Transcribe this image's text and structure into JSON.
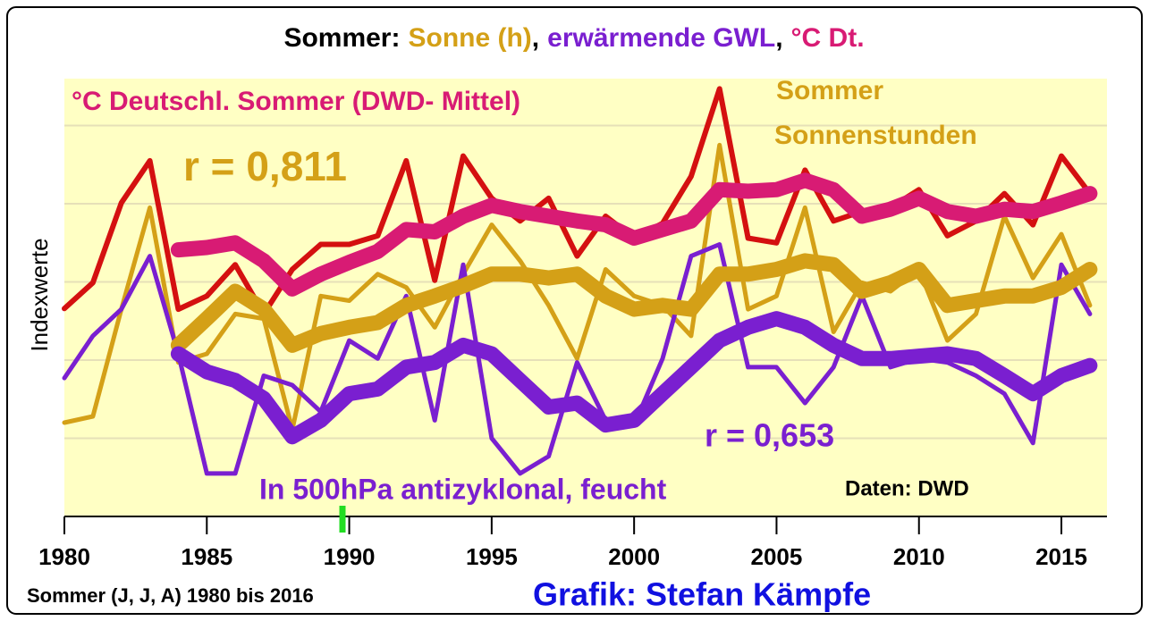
{
  "chart_data": {
    "type": "line",
    "title_parts": [
      "Sommer:",
      "Sonne (h)",
      ",",
      "erwärmende GWL",
      ",",
      "°C Dt."
    ],
    "title_colors": [
      "#000000",
      "#d4a017",
      "#000000",
      "#7a1fd0",
      "#000000",
      "#d81b74"
    ],
    "y_label": "Indexwerte",
    "x_caption": "Sommer (J, J, A) 1980 bis 2016",
    "credit": "Grafik: Stefan Kämpfe",
    "annotations": [
      {
        "text": "°C Deutschl. Sommer (DWD- Mittel)",
        "color": "#d81b74"
      },
      {
        "text": "Sommer",
        "color": "#d4a017"
      },
      {
        "text": "Sonnenstunden",
        "color": "#d4a017"
      },
      {
        "text": "r = 0,811",
        "color": "#d4a017"
      },
      {
        "text": "r = 0,653",
        "color": "#7a1fd0"
      },
      {
        "text": "In 500hPa antizyklonal, feucht",
        "color": "#7a1fd0"
      },
      {
        "text": "Daten: DWD",
        "color": "#000000"
      }
    ],
    "x": [
      1980,
      1981,
      1982,
      1983,
      1984,
      1985,
      1986,
      1987,
      1988,
      1989,
      1990,
      1991,
      1992,
      1993,
      1994,
      1995,
      1996,
      1997,
      1998,
      1999,
      2000,
      2001,
      2002,
      2003,
      2004,
      2005,
      2006,
      2007,
      2008,
      2009,
      2010,
      2011,
      2012,
      2013,
      2014,
      2015,
      2016
    ],
    "xlim": [
      1980,
      2016.6
    ],
    "xticks": [
      1980,
      1985,
      1990,
      1995,
      2000,
      2005,
      2010,
      2015
    ],
    "ylim": [
      0,
      5.6
    ],
    "ygrid": [
      1,
      2,
      3,
      4,
      5
    ],
    "grid": true,
    "series": [
      {
        "color": "#d4a017",
        "width": 5,
        "values": [
          1.2,
          1.28,
          2.65,
          3.95,
          1.97,
          2.08,
          2.59,
          2.53,
          1.11,
          2.82,
          2.76,
          3.1,
          2.93,
          2.42,
          3.1,
          3.73,
          3.27,
          2.7,
          2.02,
          3.16,
          2.82,
          2.7,
          2.31,
          4.75,
          2.65,
          2.82,
          3.95,
          2.36,
          2.99,
          2.88,
          3.16,
          2.25,
          2.59,
          3.84,
          3.05,
          3.61,
          2.7
        ]
      },
      {
        "color": "#7a1fd0",
        "width": 5,
        "values": [
          1.77,
          2.31,
          2.65,
          3.33,
          2.08,
          0.55,
          0.55,
          1.8,
          1.68,
          1.34,
          2.25,
          2.02,
          2.82,
          1.23,
          3.22,
          1.0,
          0.55,
          0.77,
          1.97,
          1.23,
          1.17,
          2.02,
          3.33,
          3.48,
          1.91,
          1.91,
          1.45,
          1.91,
          2.82,
          1.91,
          2.02,
          1.97,
          1.8,
          1.57,
          0.94,
          3.22,
          2.59
        ]
      },
      {
        "color": "#d41010",
        "width": 6,
        "values": [
          2.66,
          2.99,
          4.01,
          4.55,
          2.65,
          2.82,
          3.22,
          2.59,
          3.16,
          3.48,
          3.48,
          3.59,
          4.55,
          3.02,
          4.61,
          4.07,
          3.78,
          4.07,
          3.33,
          3.84,
          3.56,
          3.75,
          4.35,
          5.47,
          3.56,
          3.5,
          4.43,
          3.78,
          3.9,
          3.95,
          4.18,
          3.59,
          3.78,
          4.13,
          3.73,
          4.61,
          4.13
        ]
      },
      {
        "color": "#d4a017",
        "width": 17,
        "values": [
          null,
          null,
          null,
          null,
          2.19,
          2.53,
          2.88,
          2.65,
          2.19,
          2.34,
          2.42,
          2.48,
          2.7,
          2.82,
          2.95,
          3.1,
          3.1,
          3.05,
          3.1,
          2.82,
          2.65,
          2.7,
          2.65,
          3.1,
          3.1,
          3.16,
          3.27,
          3.22,
          2.88,
          2.99,
          3.16,
          2.7,
          2.76,
          2.82,
          2.82,
          2.93,
          3.16
        ]
      },
      {
        "color": "#7a1fd0",
        "width": 17,
        "values": [
          null,
          null,
          null,
          null,
          2.08,
          1.85,
          1.74,
          1.51,
          1.02,
          1.23,
          1.57,
          1.63,
          1.91,
          1.97,
          2.19,
          2.08,
          1.74,
          1.4,
          1.45,
          1.17,
          1.23,
          1.57,
          1.91,
          2.25,
          2.42,
          2.53,
          2.42,
          2.19,
          2.02,
          2.02,
          2.05,
          2.08,
          2.02,
          1.8,
          1.57,
          1.8,
          1.93
        ]
      },
      {
        "color": "#d81b74",
        "width": 17,
        "values": [
          null,
          null,
          null,
          null,
          3.41,
          3.44,
          3.5,
          3.27,
          2.91,
          3.1,
          3.25,
          3.39,
          3.67,
          3.64,
          3.84,
          3.98,
          3.9,
          3.84,
          3.78,
          3.73,
          3.56,
          3.67,
          3.78,
          4.18,
          4.16,
          4.18,
          4.3,
          4.18,
          3.84,
          3.93,
          4.07,
          3.9,
          3.84,
          3.93,
          3.9,
          4.01,
          4.13
        ]
      }
    ]
  }
}
